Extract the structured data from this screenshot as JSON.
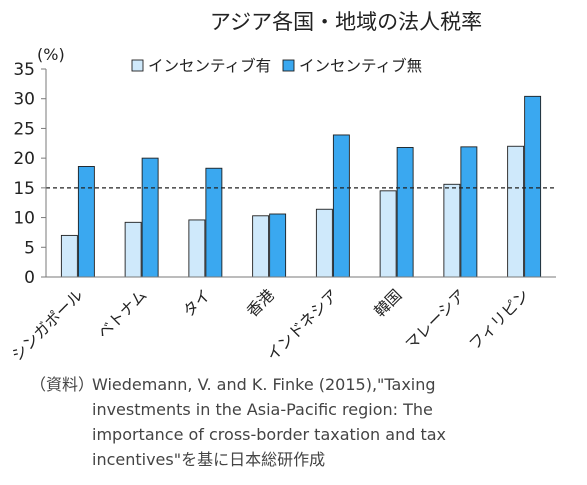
{
  "chart_data": {
    "type": "bar",
    "title": "アジア各国・地域の法人税率",
    "ylabel": "(%)",
    "ylim": [
      0,
      35
    ],
    "yticks": [
      0,
      5,
      10,
      15,
      20,
      25,
      30,
      35
    ],
    "reference_line": 15,
    "categories": [
      "シンガポール",
      "ベトナム",
      "タイ",
      "香港",
      "インドネシア",
      "韓国",
      "マレーシア",
      "フィリピン"
    ],
    "series": [
      {
        "name": "インセンティブ有",
        "color": "#cfe9fb",
        "values": [
          7.0,
          9.2,
          9.6,
          10.3,
          11.4,
          14.5,
          15.6,
          22.0
        ]
      },
      {
        "name": "インセンティブ無",
        "color": "#3aa8f0",
        "values": [
          18.6,
          20.0,
          18.3,
          10.6,
          23.9,
          21.8,
          21.9,
          30.4
        ]
      }
    ],
    "legend_position": "top",
    "grid": false
  },
  "source": {
    "label": "（資料）",
    "lines": [
      "Wiedemann, V. and K. Finke (2015),\"Taxing",
      "investments in the Asia-Pacific region: The",
      "importance of cross-border  taxation and tax",
      "incentives\"を基に日本総研作成"
    ]
  }
}
